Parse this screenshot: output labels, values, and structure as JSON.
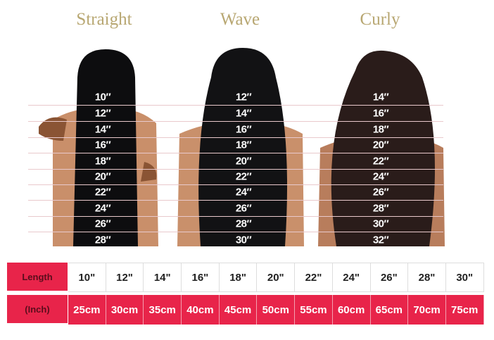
{
  "titles": [
    "Straight",
    "Wave",
    "Curly"
  ],
  "columns": [
    {
      "labels": [
        "10″",
        "12″",
        "14″",
        "16″",
        "18″",
        "20″",
        "22″",
        "24″",
        "26″",
        "28″"
      ]
    },
    {
      "labels": [
        "12″",
        "14″",
        "16″",
        "18″",
        "20″",
        "22″",
        "24″",
        "26″",
        "28″",
        "30″"
      ]
    },
    {
      "labels": [
        "14″",
        "16″",
        "18″",
        "20″",
        "22″",
        "24″",
        "26″",
        "28″",
        "30″",
        "32″"
      ]
    }
  ],
  "table": {
    "row1_label": "Length",
    "row2_label": "(Inch)",
    "inches": [
      "10\"",
      "12\"",
      "14\"",
      "16\"",
      "18\"",
      "20\"",
      "22\"",
      "24\"",
      "26\"",
      "28\"",
      "30\""
    ],
    "cm": [
      "25cm",
      "30cm",
      "35cm",
      "40cm",
      "45cm",
      "50cm",
      "55cm",
      "60cm",
      "65cm",
      "70cm",
      "75cm"
    ]
  },
  "colors": {
    "accent": "#e8244a",
    "title": "#b8a772"
  }
}
